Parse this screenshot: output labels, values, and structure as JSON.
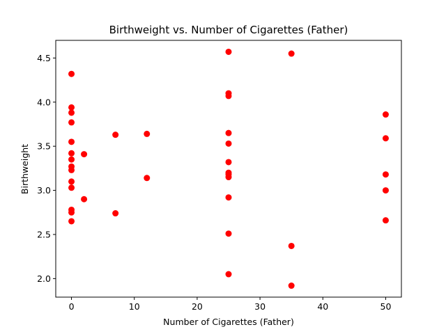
{
  "chart_data": {
    "type": "scatter",
    "title": "Birthweight vs. Number of Cigarettes (Father)",
    "xlabel": "Number of Cigarettes (Father)",
    "ylabel": "Birthweight",
    "xlim": [
      -2.5,
      52.5
    ],
    "ylim": [
      1.79,
      4.7
    ],
    "x_ticks": [
      0,
      10,
      20,
      30,
      40,
      50
    ],
    "x_tick_labels": [
      "0",
      "10",
      "20",
      "30",
      "40",
      "50"
    ],
    "y_ticks": [
      2.0,
      2.5,
      3.0,
      3.5,
      4.0,
      4.5
    ],
    "y_tick_labels": [
      "2.0",
      "2.5",
      "3.0",
      "3.5",
      "4.0",
      "4.5"
    ],
    "grid": false,
    "marker_color": "#ff0000",
    "points": [
      {
        "x": 0,
        "y": 4.32
      },
      {
        "x": 0,
        "y": 3.94
      },
      {
        "x": 0,
        "y": 3.88
      },
      {
        "x": 0,
        "y": 3.77
      },
      {
        "x": 0,
        "y": 3.55
      },
      {
        "x": 0,
        "y": 3.42
      },
      {
        "x": 0,
        "y": 3.35
      },
      {
        "x": 0,
        "y": 3.27
      },
      {
        "x": 0,
        "y": 3.23
      },
      {
        "x": 0,
        "y": 3.1
      },
      {
        "x": 0,
        "y": 3.03
      },
      {
        "x": 0,
        "y": 2.78
      },
      {
        "x": 0,
        "y": 2.75
      },
      {
        "x": 0,
        "y": 2.65
      },
      {
        "x": 2,
        "y": 3.41
      },
      {
        "x": 2,
        "y": 2.9
      },
      {
        "x": 7,
        "y": 3.63
      },
      {
        "x": 7,
        "y": 2.74
      },
      {
        "x": 12,
        "y": 3.64
      },
      {
        "x": 12,
        "y": 3.14
      },
      {
        "x": 25,
        "y": 4.57
      },
      {
        "x": 25,
        "y": 4.1
      },
      {
        "x": 25,
        "y": 4.07
      },
      {
        "x": 25,
        "y": 3.65
      },
      {
        "x": 25,
        "y": 3.53
      },
      {
        "x": 25,
        "y": 3.32
      },
      {
        "x": 25,
        "y": 3.2
      },
      {
        "x": 25,
        "y": 3.18
      },
      {
        "x": 25,
        "y": 3.15
      },
      {
        "x": 25,
        "y": 2.92
      },
      {
        "x": 25,
        "y": 2.51
      },
      {
        "x": 25,
        "y": 2.05
      },
      {
        "x": 35,
        "y": 4.55
      },
      {
        "x": 35,
        "y": 2.37
      },
      {
        "x": 35,
        "y": 1.92
      },
      {
        "x": 50,
        "y": 3.86
      },
      {
        "x": 50,
        "y": 3.59
      },
      {
        "x": 50,
        "y": 3.18
      },
      {
        "x": 50,
        "y": 3.0
      },
      {
        "x": 50,
        "y": 2.66
      }
    ]
  }
}
